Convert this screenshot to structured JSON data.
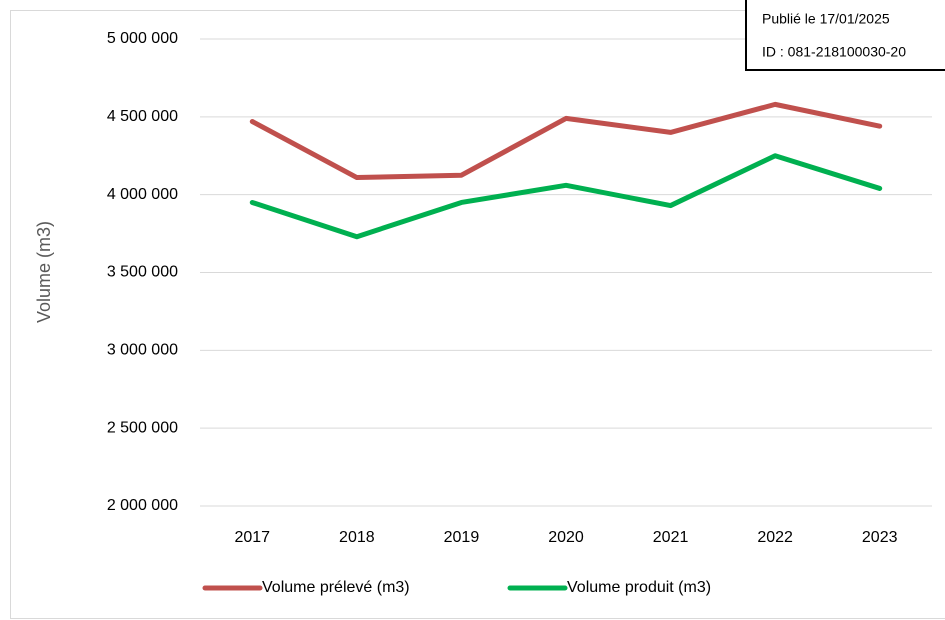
{
  "chart_data": {
    "type": "line",
    "ylabel": "Volume (m3)",
    "categories": [
      "2017",
      "2018",
      "2019",
      "2020",
      "2021",
      "2022",
      "2023"
    ],
    "series": [
      {
        "name": "Volume prélevé (m3)",
        "color": "#c0504d",
        "values": [
          4470000,
          4110000,
          4125000,
          4490000,
          4400000,
          4580000,
          4440000
        ]
      },
      {
        "name": "Volume produit (m3)",
        "color": "#00b050",
        "values": [
          3950000,
          3730000,
          3950000,
          4060000,
          3930000,
          4250000,
          4040000
        ]
      }
    ],
    "ylim": [
      2000000,
      5000000
    ],
    "yticks": [
      {
        "value": 2000000,
        "label": "2 000 000"
      },
      {
        "value": 2500000,
        "label": "2 500 000"
      },
      {
        "value": 3000000,
        "label": "3 000 000"
      },
      {
        "value": 3500000,
        "label": "3 500 000"
      },
      {
        "value": 4000000,
        "label": "4 000 000"
      },
      {
        "value": 4500000,
        "label": "4 500 000"
      },
      {
        "value": 5000000,
        "label": "5 000 000"
      }
    ],
    "grid": true,
    "legend": "bottom"
  },
  "stamp": {
    "published": "Publié le 17/01/2025",
    "id": "ID : 081-218100030-20"
  }
}
